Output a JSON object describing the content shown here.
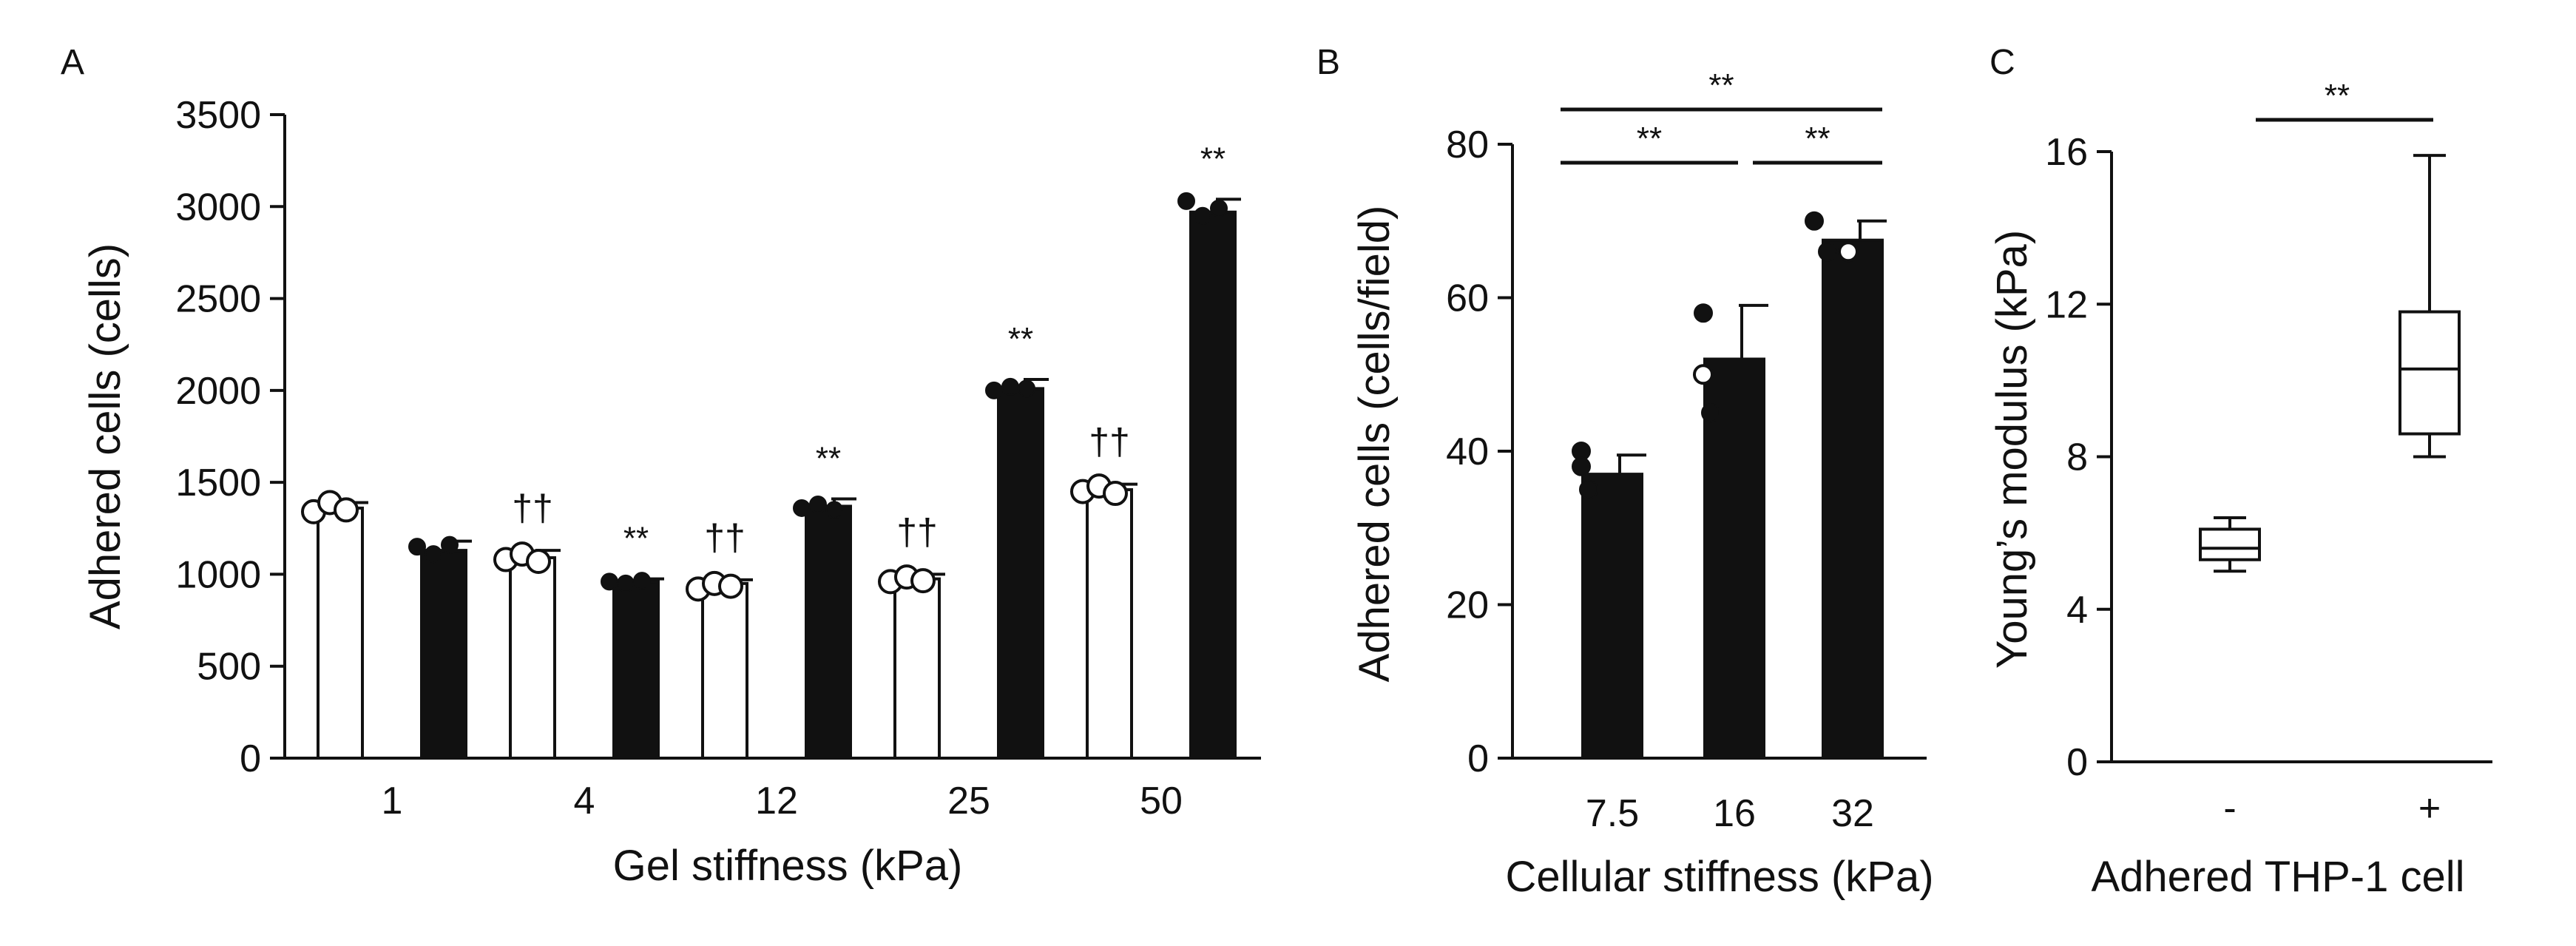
{
  "chart_data": [
    {
      "panel": "A",
      "type": "bar",
      "xlabel": "Gel stiffness (kPa)",
      "ylabel": "Adhered cells  (cells)",
      "ylim": [
        0,
        3500
      ],
      "yticks": [
        "0",
        "500",
        "1000",
        "1500",
        "2000",
        "2500",
        "3000",
        "3500"
      ],
      "categories": [
        "1",
        "4",
        "12",
        "25",
        "50"
      ],
      "series": [
        {
          "name": "white",
          "color": "#ffffff",
          "values": [
            1360,
            1090,
            950,
            975,
            1460
          ],
          "errors": [
            30,
            40,
            20,
            25,
            30
          ],
          "points": [
            [
              1340,
              1390,
              1350
            ],
            [
              1080,
              1110,
              1070
            ],
            [
              920,
              950,
              935
            ],
            [
              960,
              985,
              965
            ],
            [
              1450,
              1480,
              1440
            ]
          ],
          "annotations": [
            "",
            "††",
            "††",
            "††",
            "††"
          ]
        },
        {
          "name": "black",
          "color": "#111111",
          "values": [
            1130,
            960,
            1370,
            2010,
            2970
          ],
          "errors": [
            50,
            15,
            40,
            50,
            70
          ],
          "points": [
            [
              1150,
              1110,
              1160
            ],
            [
              960,
              950,
              965
            ],
            [
              1360,
              1380,
              1350
            ],
            [
              2000,
              2020,
              2010
            ],
            [
              3030,
              2950,
              2990
            ]
          ],
          "annotations": [
            "",
            "**",
            "**",
            "**",
            "**"
          ]
        }
      ]
    },
    {
      "panel": "B",
      "type": "bar",
      "xlabel": "Cellular stiffness (kPa)",
      "ylabel": "Adhered cells (cells/field)",
      "ylim": [
        0,
        80
      ],
      "yticks": [
        "0",
        "20",
        "40",
        "60",
        "80"
      ],
      "categories": [
        "7.5",
        "16",
        "32"
      ],
      "values": [
        37,
        52,
        67.5
      ],
      "errors": [
        2.5,
        7,
        2.5
      ],
      "points": [
        [
          40,
          38,
          35
        ],
        [
          58,
          50,
          45
        ],
        [
          70,
          66,
          66
        ]
      ],
      "significance": [
        {
          "from": 0,
          "to": 1,
          "label": "**"
        },
        {
          "from": 1,
          "to": 2,
          "label": "**"
        },
        {
          "from": 0,
          "to": 2,
          "label": "**"
        }
      ]
    },
    {
      "panel": "C",
      "type": "box",
      "xlabel": "Adhered THP-1 cell",
      "ylabel": "Young’s modulus (kPa)",
      "ylim": [
        0,
        16
      ],
      "yticks": [
        "0",
        "4",
        "8",
        "12",
        "16"
      ],
      "categories": [
        "-",
        "+"
      ],
      "boxes": [
        {
          "min": 5.0,
          "q1": 5.3,
          "median": 5.6,
          "q3": 6.1,
          "max": 6.4
        },
        {
          "min": 8.0,
          "q1": 8.6,
          "median": 10.3,
          "q3": 11.8,
          "max": 15.9
        }
      ],
      "significance": [
        {
          "from": 0,
          "to": 1,
          "label": "**"
        }
      ]
    }
  ]
}
